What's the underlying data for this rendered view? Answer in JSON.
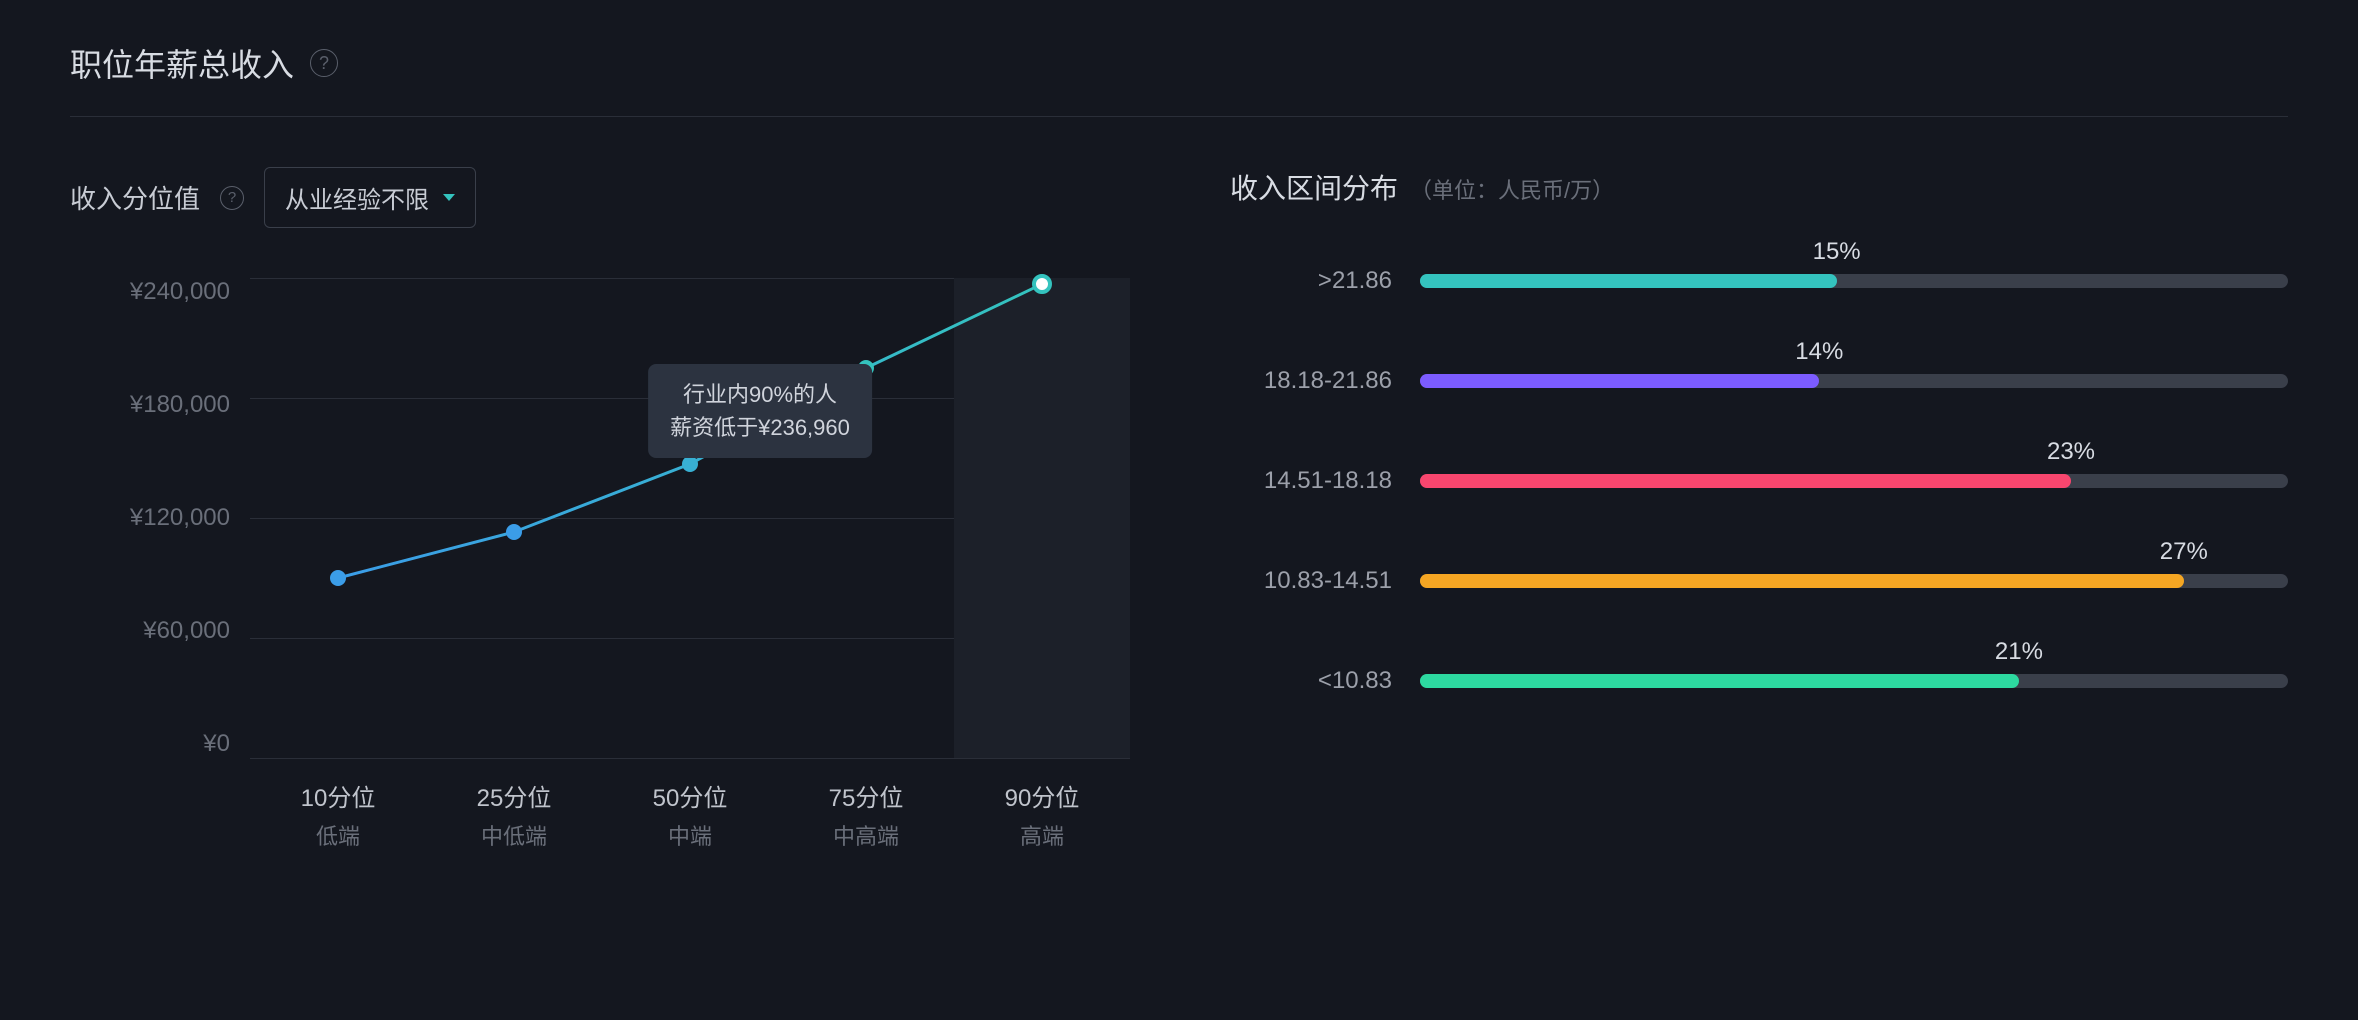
{
  "header": {
    "title": "职位年薪总收入"
  },
  "leftPanel": {
    "controlLabel": "收入分位值",
    "dropdownLabel": "从业经验不限",
    "chart": {
      "type": "line",
      "yTicks": [
        "¥240,000",
        "¥180,000",
        "¥120,000",
        "¥60,000",
        "¥0"
      ],
      "yMax": 240000,
      "yMin": 0,
      "xTicks": [
        {
          "label": "10分位",
          "sublabel": "低端"
        },
        {
          "label": "25分位",
          "sublabel": "中低端"
        },
        {
          "label": "50分位",
          "sublabel": "中端"
        },
        {
          "label": "75分位",
          "sublabel": "中高端"
        },
        {
          "label": "90分位",
          "sublabel": "高端"
        }
      ],
      "values": [
        90000,
        113000,
        147000,
        195000,
        236960
      ],
      "lineColorStart": "#3b9de8",
      "lineColorEnd": "#34c3be",
      "lineWidth": 3,
      "markerSize": 14,
      "highlightedIndex": 4,
      "highlightColor": "#1c2029",
      "gridColor": "#2a2e38",
      "tooltip": {
        "line1": "行业内90%的人",
        "line2": "薪资低于¥236,960",
        "atIndex": 2,
        "bg": "#2c3340"
      }
    }
  },
  "rightPanel": {
    "title": "收入区间分布",
    "subtitle": "（单位：人民币/万）",
    "bars": [
      {
        "label": ">21.86",
        "percent": 15,
        "fillWidthPct": 48,
        "color": "#34c3be",
        "percentLabel": "15%"
      },
      {
        "label": "18.18-21.86",
        "percent": 14,
        "fillWidthPct": 46,
        "color": "#7c5cff",
        "percentLabel": "14%"
      },
      {
        "label": "14.51-18.18",
        "percent": 23,
        "fillWidthPct": 75,
        "color": "#f8466e",
        "percentLabel": "23%"
      },
      {
        "label": "10.83-14.51",
        "percent": 27,
        "fillWidthPct": 88,
        "color": "#f5a623",
        "percentLabel": "27%"
      },
      {
        "label": "<10.83",
        "percent": 21,
        "fillWidthPct": 69,
        "color": "#2dd9a0",
        "percentLabel": "21%"
      }
    ],
    "trackColor": "#3a3f4a"
  }
}
